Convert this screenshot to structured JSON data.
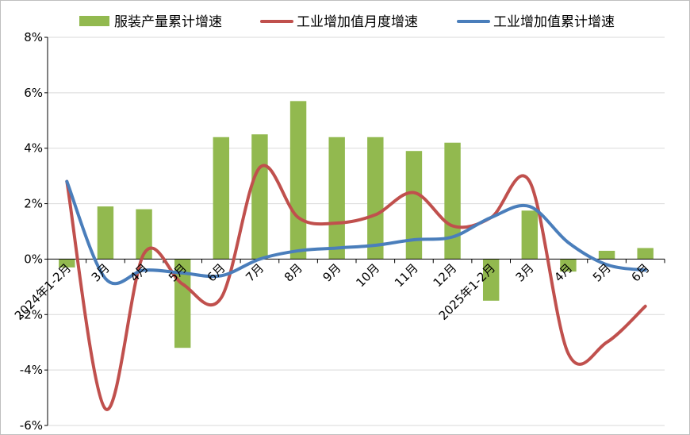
{
  "chart_data": {
    "type": "bar",
    "categories": [
      "2024年1-2月",
      "3月",
      "4月",
      "5月",
      "6月",
      "7月",
      "8月",
      "9月",
      "10月",
      "11月",
      "12月",
      "2025年1-2月",
      "3月",
      "4月",
      "5月",
      "6月"
    ],
    "series": [
      {
        "name": "服装产量累计增速",
        "type": "bar",
        "color": "#92b94f",
        "values": [
          -0.3,
          1.9,
          1.8,
          -3.2,
          4.4,
          4.5,
          5.7,
          4.4,
          4.4,
          3.9,
          4.2,
          -1.5,
          1.75,
          -0.45,
          0.3,
          0.4
        ]
      },
      {
        "name": "工业增加值月度增速",
        "type": "line",
        "smooth": true,
        "color": "#c0504d",
        "values": [
          2.8,
          -5.4,
          0.2,
          -0.9,
          -1.4,
          3.3,
          1.5,
          1.3,
          1.6,
          2.4,
          1.2,
          1.5,
          2.8,
          -3.4,
          -3.0,
          -1.7
        ]
      },
      {
        "name": "工业增加值累计增速",
        "type": "line",
        "smooth": true,
        "color": "#4a7ebb",
        "values": [
          2.8,
          -0.7,
          -0.4,
          -0.5,
          -0.6,
          0.0,
          0.3,
          0.4,
          0.5,
          0.7,
          0.8,
          1.5,
          1.9,
          0.6,
          -0.2,
          -0.4
        ]
      }
    ],
    "ylim": [
      -6,
      8
    ],
    "yticks": [
      "-6%",
      "-4%",
      "-2%",
      "0%",
      "2%",
      "4%",
      "6%",
      "8%"
    ],
    "ytick_values": [
      -6,
      -4,
      -2,
      0,
      2,
      4,
      6,
      8
    ],
    "title": "",
    "xlabel": "",
    "ylabel": "",
    "grid": "horizontal",
    "legend_position": "top"
  }
}
